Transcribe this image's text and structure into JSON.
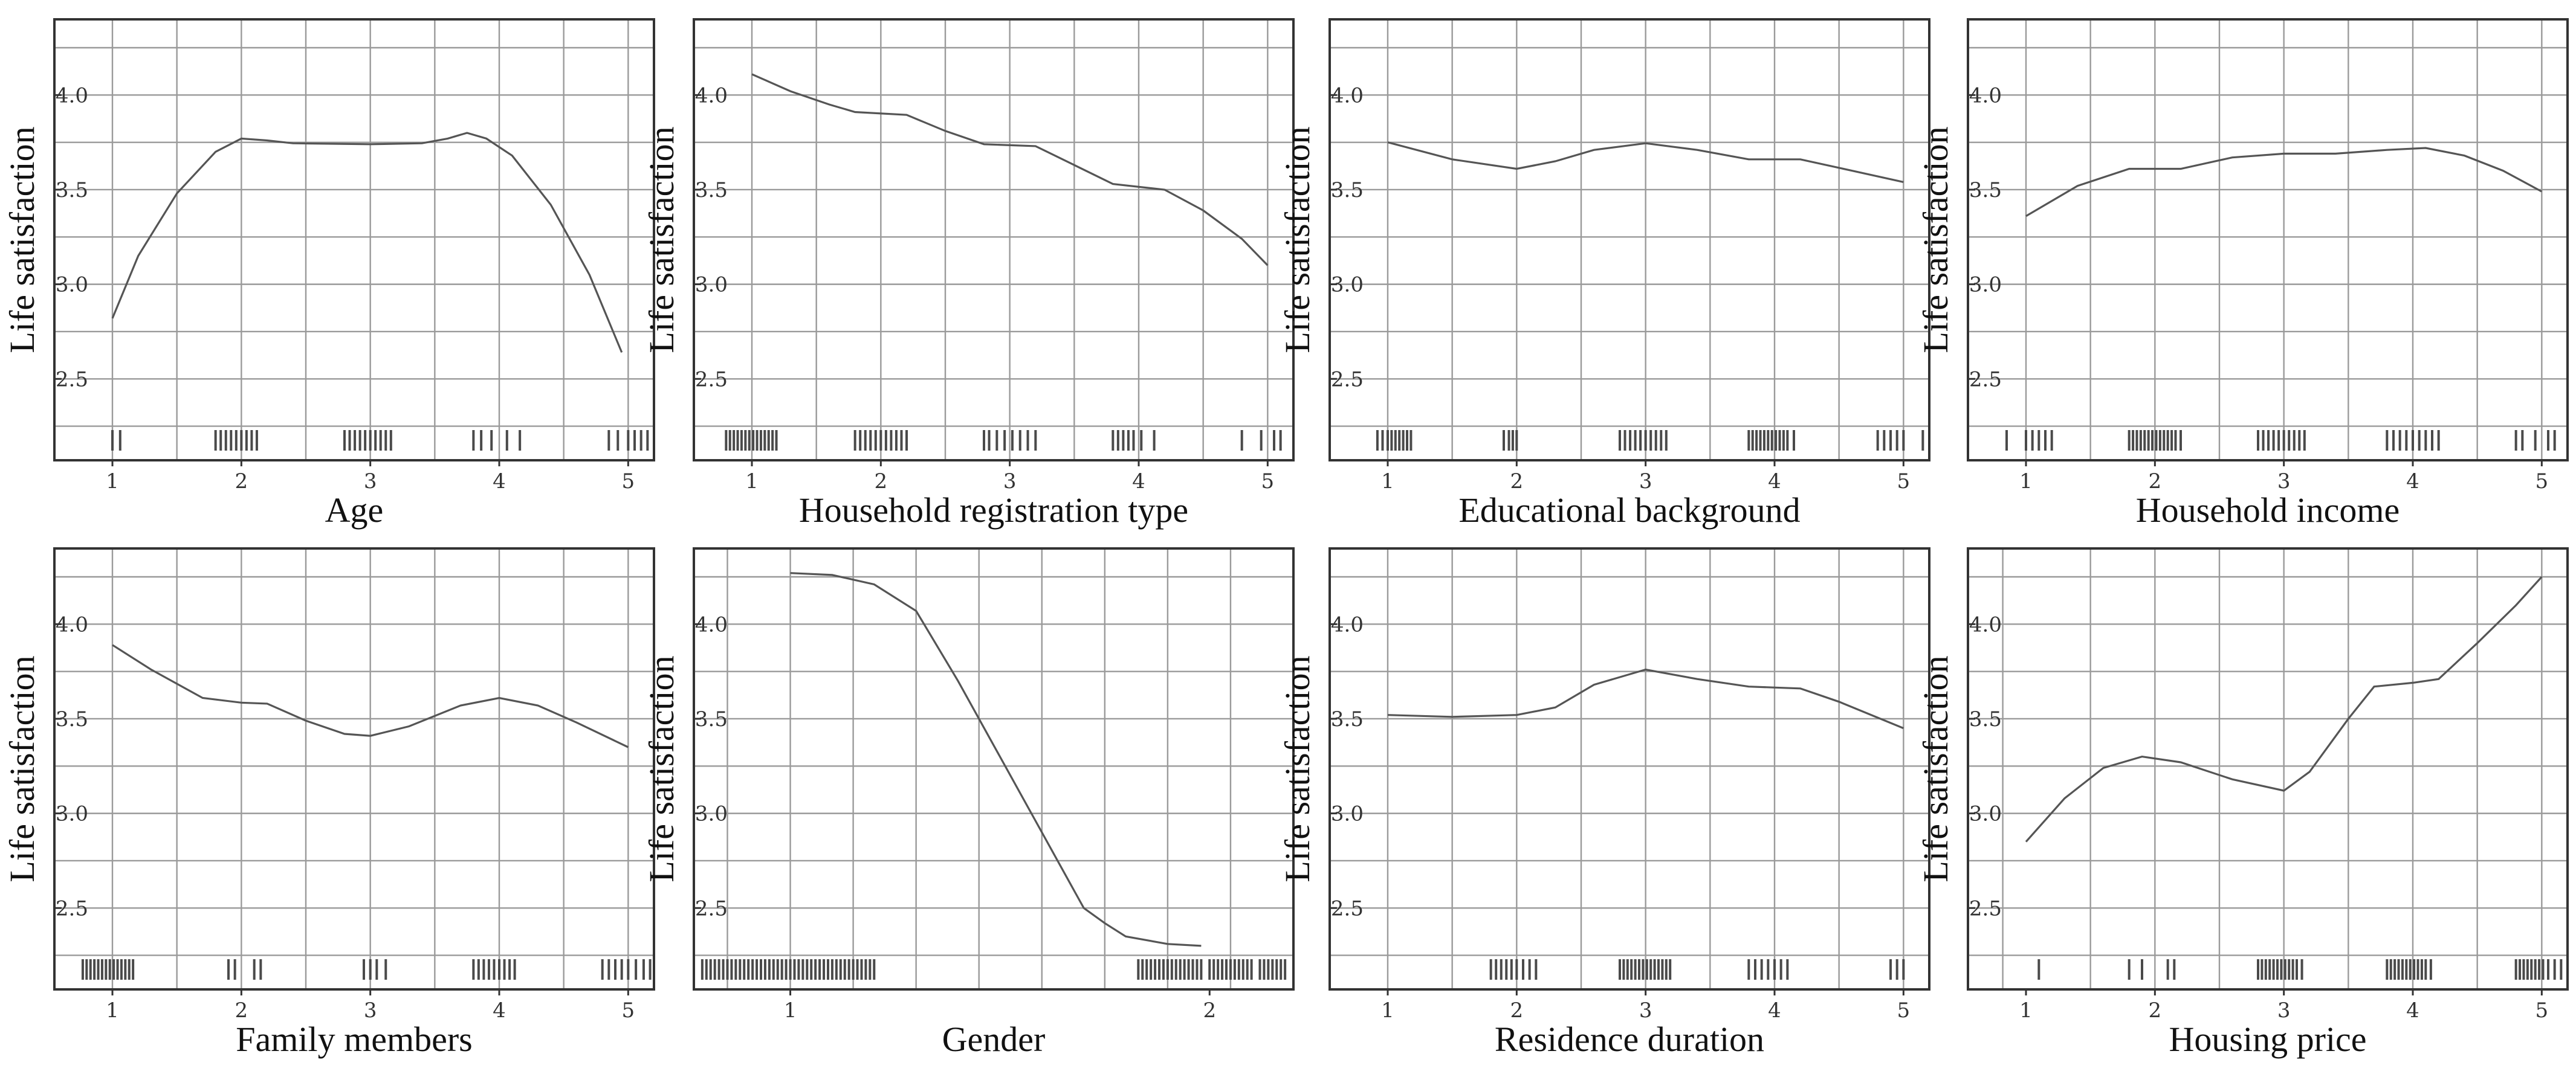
{
  "chart_data": [
    {
      "type": "line",
      "xlabel": "Age",
      "ylabel": "Life satisfaction",
      "xlim": [
        0.55,
        5.2
      ],
      "ylim": [
        2.07,
        4.4
      ],
      "xticks": [
        1,
        2,
        3,
        4,
        5
      ],
      "xtick_labels": [
        "1",
        "2",
        "3",
        "4",
        "5"
      ],
      "yticks": [
        2.5,
        3.0,
        3.5,
        4.0
      ],
      "ytick_labels": [
        "2.5",
        "3.0",
        "3.5",
        "4.0"
      ],
      "xgrid": [
        1,
        1.5,
        2,
        2.5,
        3,
        3.5,
        4,
        4.5,
        5
      ],
      "ygrid": [
        2.25,
        2.5,
        2.75,
        3.0,
        3.25,
        3.5,
        3.75,
        4.0,
        4.25
      ],
      "curve": [
        [
          1,
          2.82
        ],
        [
          1.2,
          3.15
        ],
        [
          1.5,
          3.48
        ],
        [
          1.8,
          3.7
        ],
        [
          2,
          3.77
        ],
        [
          2.2,
          3.76
        ],
        [
          2.4,
          3.745
        ],
        [
          3,
          3.74
        ],
        [
          3.4,
          3.745
        ],
        [
          3.6,
          3.77
        ],
        [
          3.75,
          3.8
        ],
        [
          3.9,
          3.77
        ],
        [
          4.1,
          3.68
        ],
        [
          4.4,
          3.42
        ],
        [
          4.7,
          3.05
        ],
        [
          4.95,
          2.64
        ]
      ],
      "rug": [
        1,
        1.06,
        1.8,
        1.84,
        1.88,
        1.92,
        1.96,
        2.0,
        2.04,
        2.08,
        2.12,
        2.8,
        2.84,
        2.88,
        2.92,
        2.96,
        3.0,
        3.04,
        3.08,
        3.12,
        3.16,
        3.8,
        3.86,
        3.94,
        4.06,
        4.16,
        4.85,
        4.92,
        5.0,
        5.05,
        5.1,
        5.15
      ]
    },
    {
      "type": "line",
      "xlabel": "Household registration type",
      "ylabel": "Life satisfaction",
      "xlim": [
        0.55,
        5.2
      ],
      "ylim": [
        2.07,
        4.4
      ],
      "xticks": [
        1,
        2,
        3,
        4,
        5
      ],
      "xtick_labels": [
        "1",
        "2",
        "3",
        "4",
        "5"
      ],
      "yticks": [
        2.5,
        3.0,
        3.5,
        4.0
      ],
      "ytick_labels": [
        "2.5",
        "3.0",
        "3.5",
        "4.0"
      ],
      "xgrid": [
        1,
        1.5,
        2,
        2.5,
        3,
        3.5,
        4,
        4.5,
        5
      ],
      "ygrid": [
        2.25,
        2.5,
        2.75,
        3.0,
        3.25,
        3.5,
        3.75,
        4.0,
        4.25
      ],
      "curve": [
        [
          1,
          4.11
        ],
        [
          1.3,
          4.02
        ],
        [
          1.6,
          3.95
        ],
        [
          1.8,
          3.91
        ],
        [
          2.2,
          3.895
        ],
        [
          2.5,
          3.81
        ],
        [
          2.8,
          3.74
        ],
        [
          3.2,
          3.73
        ],
        [
          3.5,
          3.63
        ],
        [
          3.8,
          3.53
        ],
        [
          4.2,
          3.5
        ],
        [
          4.5,
          3.39
        ],
        [
          4.8,
          3.24
        ],
        [
          5,
          3.1
        ]
      ],
      "rug": [
        0.8,
        0.83,
        0.86,
        0.89,
        0.92,
        0.95,
        0.98,
        1.01,
        1.04,
        1.07,
        1.1,
        1.13,
        1.16,
        1.19,
        1.8,
        1.84,
        1.88,
        1.92,
        1.96,
        2.0,
        2.04,
        2.08,
        2.12,
        2.16,
        2.2,
        2.8,
        2.84,
        2.9,
        2.96,
        3.02,
        3.08,
        3.14,
        3.2,
        3.8,
        3.84,
        3.88,
        3.92,
        3.96,
        4.02,
        4.12,
        4.8,
        4.95,
        5.05,
        5.1
      ]
    },
    {
      "type": "line",
      "xlabel": "Educational background",
      "ylabel": "Life satisfaction",
      "xlim": [
        0.55,
        5.2
      ],
      "ylim": [
        2.07,
        4.4
      ],
      "xticks": [
        1,
        2,
        3,
        4,
        5
      ],
      "xtick_labels": [
        "1",
        "2",
        "3",
        "4",
        "5"
      ],
      "yticks": [
        2.5,
        3.0,
        3.5,
        4.0
      ],
      "ytick_labels": [
        "2.5",
        "3.0",
        "3.5",
        "4.0"
      ],
      "xgrid": [
        1,
        1.5,
        2,
        2.5,
        3,
        3.5,
        4,
        4.5,
        5
      ],
      "ygrid": [
        2.25,
        2.5,
        2.75,
        3.0,
        3.25,
        3.5,
        3.75,
        4.0,
        4.25
      ],
      "curve": [
        [
          1,
          3.75
        ],
        [
          1.5,
          3.66
        ],
        [
          2,
          3.61
        ],
        [
          2.3,
          3.65
        ],
        [
          2.6,
          3.71
        ],
        [
          3,
          3.745
        ],
        [
          3.4,
          3.71
        ],
        [
          3.8,
          3.66
        ],
        [
          4.2,
          3.66
        ],
        [
          4.6,
          3.6
        ],
        [
          5,
          3.54
        ]
      ],
      "rug": [
        0.92,
        0.96,
        1.0,
        1.03,
        1.06,
        1.09,
        1.12,
        1.15,
        1.18,
        1.9,
        1.94,
        1.97,
        2.0,
        2.8,
        2.84,
        2.88,
        2.92,
        2.96,
        3.0,
        3.04,
        3.08,
        3.12,
        3.16,
        3.8,
        3.83,
        3.86,
        3.89,
        3.92,
        3.95,
        3.98,
        4.01,
        4.04,
        4.07,
        4.1,
        4.15,
        4.8,
        4.85,
        4.9,
        4.95,
        5.0,
        5.15
      ]
    },
    {
      "type": "line",
      "xlabel": "Household income",
      "ylabel": "Life satisfaction",
      "xlim": [
        0.55,
        5.2
      ],
      "ylim": [
        2.07,
        4.4
      ],
      "xticks": [
        1,
        2,
        3,
        4,
        5
      ],
      "xtick_labels": [
        "1",
        "2",
        "3",
        "4",
        "5"
      ],
      "yticks": [
        2.5,
        3.0,
        3.5,
        4.0
      ],
      "ytick_labels": [
        "2.5",
        "3.0",
        "3.5",
        "4.0"
      ],
      "xgrid": [
        1,
        1.5,
        2,
        2.5,
        3,
        3.5,
        4,
        4.5,
        5
      ],
      "ygrid": [
        2.25,
        2.5,
        2.75,
        3.0,
        3.25,
        3.5,
        3.75,
        4.0,
        4.25
      ],
      "curve": [
        [
          1,
          3.36
        ],
        [
          1.4,
          3.52
        ],
        [
          1.8,
          3.61
        ],
        [
          2.2,
          3.61
        ],
        [
          2.6,
          3.67
        ],
        [
          3,
          3.69
        ],
        [
          3.4,
          3.69
        ],
        [
          3.8,
          3.71
        ],
        [
          4.1,
          3.72
        ],
        [
          4.4,
          3.68
        ],
        [
          4.7,
          3.6
        ],
        [
          5,
          3.49
        ]
      ],
      "rug": [
        0.85,
        1.0,
        1.05,
        1.1,
        1.15,
        1.2,
        1.8,
        1.83,
        1.86,
        1.89,
        1.92,
        1.95,
        1.98,
        2.01,
        2.04,
        2.07,
        2.1,
        2.13,
        2.16,
        2.2,
        2.8,
        2.84,
        2.88,
        2.92,
        2.96,
        3.0,
        3.04,
        3.08,
        3.12,
        3.16,
        3.8,
        3.85,
        3.9,
        3.95,
        4.0,
        4.05,
        4.1,
        4.15,
        4.2,
        4.8,
        4.85,
        4.95,
        5.05,
        5.1
      ]
    },
    {
      "type": "line",
      "xlabel": "Family members",
      "ylabel": "Life satisfaction",
      "xlim": [
        0.55,
        5.2
      ],
      "ylim": [
        2.07,
        4.4
      ],
      "xticks": [
        1,
        2,
        3,
        4,
        5
      ],
      "xtick_labels": [
        "1",
        "2",
        "3",
        "4",
        "5"
      ],
      "yticks": [
        2.5,
        3.0,
        3.5,
        4.0
      ],
      "ytick_labels": [
        "2.5",
        "3.0",
        "3.5",
        "4.0"
      ],
      "xgrid": [
        1,
        1.5,
        2,
        2.5,
        3,
        3.5,
        4,
        4.5,
        5
      ],
      "ygrid": [
        2.25,
        2.5,
        2.75,
        3.0,
        3.25,
        3.5,
        3.75,
        4.0,
        4.25
      ],
      "curve": [
        [
          1,
          3.89
        ],
        [
          1.3,
          3.76
        ],
        [
          1.7,
          3.61
        ],
        [
          2,
          3.585
        ],
        [
          2.2,
          3.58
        ],
        [
          2.5,
          3.49
        ],
        [
          2.8,
          3.42
        ],
        [
          3,
          3.41
        ],
        [
          3.3,
          3.46
        ],
        [
          3.7,
          3.57
        ],
        [
          4,
          3.61
        ],
        [
          4.3,
          3.57
        ],
        [
          4.6,
          3.48
        ],
        [
          5,
          3.35
        ]
      ],
      "rug": [
        0.77,
        0.8,
        0.83,
        0.86,
        0.89,
        0.92,
        0.95,
        0.98,
        1.01,
        1.04,
        1.07,
        1.1,
        1.13,
        1.16,
        1.9,
        1.95,
        2.1,
        2.15,
        2.95,
        3.0,
        3.05,
        3.12,
        3.8,
        3.84,
        3.88,
        3.92,
        3.96,
        4.0,
        4.04,
        4.08,
        4.12,
        4.8,
        4.85,
        4.9,
        4.95,
        5.0,
        5.06,
        5.12,
        5.17
      ]
    },
    {
      "type": "line",
      "xlabel": "Gender",
      "ylabel": "Life satisfaction",
      "xlim": [
        0.77,
        2.2
      ],
      "ylim": [
        2.07,
        4.4
      ],
      "xticks": [
        1,
        2
      ],
      "xtick_labels": [
        "1",
        "2"
      ],
      "yticks": [
        2.5,
        3.0,
        3.5,
        4.0
      ],
      "ytick_labels": [
        "2.5",
        "3.0",
        "3.5",
        "4.0"
      ],
      "xgrid": [
        0.85,
        1.0,
        1.15,
        1.3,
        1.45,
        1.6,
        1.75,
        1.9,
        2.05
      ],
      "ygrid": [
        2.25,
        2.5,
        2.75,
        3.0,
        3.25,
        3.5,
        3.75,
        4.0,
        4.25
      ],
      "curve": [
        [
          1,
          4.27
        ],
        [
          1.1,
          4.26
        ],
        [
          1.2,
          4.21
        ],
        [
          1.3,
          4.07
        ],
        [
          1.4,
          3.7
        ],
        [
          1.5,
          3.3
        ],
        [
          1.6,
          2.9
        ],
        [
          1.7,
          2.5
        ],
        [
          1.75,
          2.42
        ],
        [
          1.8,
          2.35
        ],
        [
          1.9,
          2.31
        ],
        [
          1.98,
          2.3
        ]
      ],
      "rug": [
        0.79,
        0.8,
        0.81,
        0.82,
        0.83,
        0.84,
        0.85,
        0.86,
        0.87,
        0.88,
        0.89,
        0.9,
        0.91,
        0.92,
        0.93,
        0.94,
        0.95,
        0.96,
        0.97,
        0.98,
        0.99,
        1.0,
        1.01,
        1.02,
        1.03,
        1.04,
        1.05,
        1.06,
        1.07,
        1.08,
        1.09,
        1.1,
        1.11,
        1.12,
        1.13,
        1.14,
        1.15,
        1.16,
        1.17,
        1.18,
        1.19,
        1.2,
        1.83,
        1.84,
        1.85,
        1.86,
        1.87,
        1.88,
        1.89,
        1.9,
        1.91,
        1.92,
        1.93,
        1.94,
        1.95,
        1.96,
        1.97,
        1.98,
        2.0,
        2.01,
        2.02,
        2.03,
        2.04,
        2.05,
        2.06,
        2.07,
        2.08,
        2.09,
        2.1,
        2.12,
        2.13,
        2.14,
        2.15,
        2.16,
        2.17,
        2.18
      ]
    },
    {
      "type": "line",
      "xlabel": "Residence duration",
      "ylabel": "Life satisfaction",
      "xlim": [
        0.55,
        5.2
      ],
      "ylim": [
        2.07,
        4.4
      ],
      "xticks": [
        1,
        2,
        3,
        4,
        5
      ],
      "xtick_labels": [
        "1",
        "2",
        "3",
        "4",
        "5"
      ],
      "yticks": [
        2.5,
        3.0,
        3.5,
        4.0
      ],
      "ytick_labels": [
        "2.5",
        "3.0",
        "3.5",
        "4.0"
      ],
      "xgrid": [
        1,
        1.5,
        2,
        2.5,
        3,
        3.5,
        4,
        4.5,
        5
      ],
      "ygrid": [
        2.25,
        2.5,
        2.75,
        3.0,
        3.25,
        3.5,
        3.75,
        4.0,
        4.25
      ],
      "curve": [
        [
          1,
          3.52
        ],
        [
          1.5,
          3.51
        ],
        [
          2,
          3.52
        ],
        [
          2.3,
          3.56
        ],
        [
          2.6,
          3.68
        ],
        [
          3,
          3.76
        ],
        [
          3.4,
          3.71
        ],
        [
          3.8,
          3.67
        ],
        [
          4.2,
          3.66
        ],
        [
          4.5,
          3.59
        ],
        [
          5,
          3.45
        ]
      ],
      "rug": [
        1.8,
        1.84,
        1.88,
        1.92,
        1.96,
        2.0,
        2.05,
        2.1,
        2.15,
        2.8,
        2.83,
        2.86,
        2.89,
        2.92,
        2.95,
        2.98,
        3.01,
        3.04,
        3.07,
        3.1,
        3.13,
        3.16,
        3.19,
        3.8,
        3.85,
        3.9,
        3.95,
        4.0,
        4.05,
        4.1,
        4.9,
        4.95,
        5.0
      ]
    },
    {
      "type": "line",
      "xlabel": "Housing price",
      "ylabel": "Life satisfaction",
      "xlim": [
        0.55,
        5.2
      ],
      "ylim": [
        2.07,
        4.4
      ],
      "xticks": [
        1,
        2,
        3,
        4,
        5
      ],
      "xtick_labels": [
        "1",
        "2",
        "3",
        "4",
        "5"
      ],
      "yticks": [
        2.5,
        3.0,
        3.5,
        4.0
      ],
      "ytick_labels": [
        "2.5",
        "3.0",
        "3.5",
        "4.0"
      ],
      "xgrid": [
        0.82,
        1.5,
        2,
        2.5,
        3,
        3.5,
        4,
        4.5,
        5
      ],
      "ygrid": [
        2.25,
        2.5,
        2.75,
        3.0,
        3.25,
        3.5,
        3.75,
        4.0,
        4.25
      ],
      "curve": [
        [
          1,
          2.85
        ],
        [
          1.3,
          3.08
        ],
        [
          1.6,
          3.24
        ],
        [
          1.9,
          3.3
        ],
        [
          2.2,
          3.27
        ],
        [
          2.6,
          3.18
        ],
        [
          3,
          3.12
        ],
        [
          3.2,
          3.22
        ],
        [
          3.5,
          3.5
        ],
        [
          3.7,
          3.67
        ],
        [
          4,
          3.69
        ],
        [
          4.2,
          3.71
        ],
        [
          4.5,
          3.9
        ],
        [
          4.8,
          4.1
        ],
        [
          5,
          4.25
        ]
      ],
      "rug": [
        1.1,
        1.8,
        1.9,
        2.1,
        2.15,
        2.8,
        2.83,
        2.86,
        2.89,
        2.92,
        2.95,
        2.98,
        3.01,
        3.04,
        3.07,
        3.1,
        3.14,
        3.8,
        3.83,
        3.86,
        3.89,
        3.92,
        3.95,
        3.98,
        4.01,
        4.04,
        4.07,
        4.1,
        4.14,
        4.8,
        4.83,
        4.86,
        4.89,
        4.92,
        4.95,
        4.98,
        5.01,
        5.05,
        5.1,
        5.15
      ]
    }
  ]
}
